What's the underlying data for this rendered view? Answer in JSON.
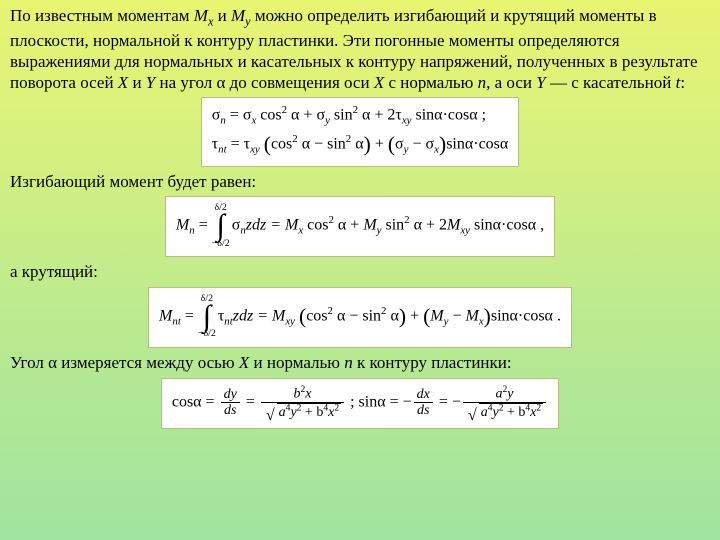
{
  "background": {
    "gradient_from": "#e8f571",
    "gradient_to": "#a0e4a0"
  },
  "typography": {
    "body_font": "Times New Roman",
    "body_size_pt": 13,
    "eq_font": "Times New Roman",
    "eq_box_bg": "#ffffff",
    "eq_box_border": "#b8c080"
  },
  "p1": {
    "t0": "По известным моментам ",
    "mx_base": "M",
    "mx_sub": "x",
    "t1": " и ",
    "my_base": "M",
    "my_sub": "y",
    "t2": " можно определить изгибающий и крутящий моменты в плоскости, нормальной к контуру пластинки. Эти погонные моменты определяются выражениями для нормальных и касательных к контуру напряжений, полученных в результате поворота осей ",
    "X": "X",
    "t3": " и ",
    "Y": "Y",
    "t4": " на угол α до совмещения оси ",
    "X2": "X",
    "t5": "  с нормалью ",
    "n": "n",
    "t6": ", а оси ",
    "Y2": "Y",
    "t7": " — с касательной ",
    "tvar": "t",
    "t8": ":"
  },
  "eq1": {
    "line1": {
      "sigma": "σ",
      "n": "n",
      "eq": " = ",
      "sxcos": "σ",
      "x": "x",
      "cos2": "cos",
      "two": "2",
      "alpha": " α + ",
      "sy": "σ",
      "y": "y",
      "sin2": "sin",
      "alpha2": " α + 2τ",
      "xy": "xy",
      "sinacos": " sinα·cosα ;"
    },
    "line2": {
      "tau": "τ",
      "nt": "nt",
      "eq": " = τ",
      "xy": "xy",
      "paren": "cos",
      "two": "2",
      "mid": " α − sin",
      "alpha2": " α",
      "plus": " + ",
      "sy": "σ",
      "y": "y",
      "minus": " − σ",
      "x": "x",
      "tail": "sinα·cosα"
    }
  },
  "p2": {
    "text": "Изгибающий момент будет равен:"
  },
  "eq2": {
    "Mn_base": "M",
    "Mn_sub": "n",
    "eq": " = ",
    "lim_top": "δ/2",
    "lim_bot": "−δ/2",
    "integrand0": "σ",
    "integrand_sub": "n",
    "integrand1": "zdz = ",
    "Mx_base": "M",
    "Mx_sub": "x",
    "cos2": " cos",
    "two": "2",
    "a1": " α + ",
    "My_base": "M",
    "My_sub": "y",
    "sin2": " sin",
    "a2": " α + 2",
    "Mxy_base": "M",
    "Mxy_sub": "xy",
    "tail": " sinα·cosα ,"
  },
  "p3": {
    "text": "а крутящий:"
  },
  "eq3": {
    "Mnt_base": "M",
    "Mnt_sub": "nt",
    "eq": " = ",
    "lim_top": "δ/2",
    "lim_bot": "−δ/2",
    "integrand0": "τ",
    "integrand_sub": "nt",
    "integrand1": "zdz = ",
    "Mxy_base": "M",
    "Mxy_sub": "xy",
    "cos2": "cos",
    "two": "2",
    "mid": " α − sin",
    "a2": " α",
    "plus": " + ",
    "My_base": "M",
    "My_sub": "y",
    "minus": " − ",
    "Mx_base": "M",
    "Mx_sub": "x",
    "tail": "sinα·cosα ."
  },
  "p4": {
    "t0": "Угол α измеряется между осью ",
    "X": "X",
    "t1": " и нормалью ",
    "n": "n",
    "t2": " к контуру пластинки:"
  },
  "eq4": {
    "cos": "cosα = ",
    "f1_num": "dy",
    "f1_den": "ds",
    "eq2": " = ",
    "f2_num_b2": "b",
    "f2_num_two": "2",
    "f2_num_x": "x",
    "f2_den_a4": "a",
    "f2_den_four": "4",
    "f2_den_y2": "y",
    "f2_den_two": "2",
    "f2_den_plus": " + b",
    "f2_den_x2": "x",
    "sep": " ;    ",
    "sin": "sinα = −",
    "f3_num": "dx",
    "f3_den": "ds",
    "eq3": " = −",
    "f4_num_a2": "a",
    "f4_num_two": "2",
    "f4_num_y": "y",
    "f4_den_a4": "a",
    "f4_den_four": "4",
    "f4_den_y2": "y",
    "f4_den_two": "2",
    "f4_den_plus": " + b",
    "f4_den_x2": "x"
  }
}
